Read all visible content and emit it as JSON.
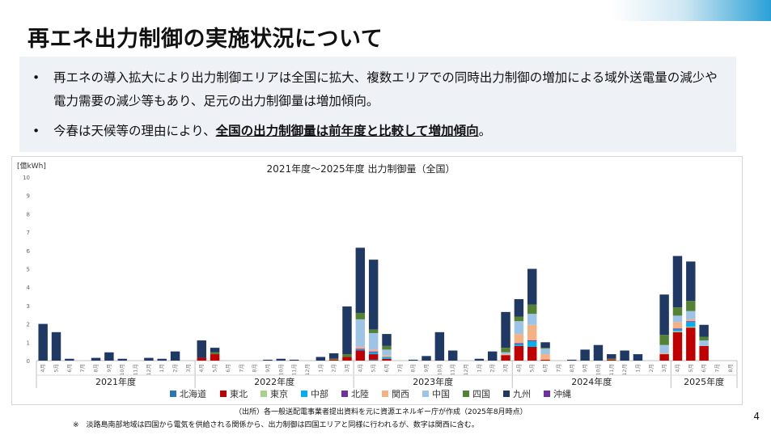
{
  "page": {
    "title": "再エネ出力制御の実施状況について",
    "bullets": [
      {
        "text": "再エネの導入拡大により出力制御エリアは全国に拡大、複数エリアでの同時出力制御の増加による域外送電量の減少や電力需要の減少等もあり、足元の出力制御量は増加傾向。",
        "emph": ""
      },
      {
        "text": "今春は天候等の理由により、",
        "emph": "全国の出力制御量は前年度と比較して増加傾向",
        "after": "。"
      }
    ],
    "bullet_mark": "•",
    "source": "（出所）各一般送配電事業者提出資料を元に資源エネルギー庁が作成（2025年8月時点）",
    "note": "※　淡路島南部地域は四国から電気を供給される関係から、出力制御は四国エリアと同様に行われるが、数字は関西に含む。",
    "page_number": "4"
  },
  "chart_data": {
    "type": "bar",
    "stacked": true,
    "title": "2021年度〜2025年度  出力制御量（全国）",
    "ylabel": "[億kWh]",
    "ylim": [
      0,
      10
    ],
    "yticks": [
      0,
      1,
      2,
      3,
      4,
      5,
      6,
      7,
      8,
      9,
      10
    ],
    "grid": false,
    "legend_position": "bottom",
    "categories": [
      "4月",
      "5月",
      "6月",
      "7月",
      "8月",
      "9月",
      "10月",
      "11月",
      "12月",
      "1月",
      "2月",
      "3月",
      "4月",
      "5月",
      "6月",
      "7月",
      "8月",
      "9月",
      "10月",
      "11月",
      "12月",
      "1月",
      "2月",
      "3月",
      "4月",
      "5月",
      "6月",
      "7月",
      "8月",
      "9月",
      "10月",
      "11月",
      "12月",
      "1月",
      "2月",
      "3月",
      "4月",
      "5月",
      "6月",
      "7月",
      "8月",
      "9月",
      "10月",
      "11月",
      "12月",
      "1月",
      "2月",
      "3月",
      "4月",
      "5月",
      "6月",
      "7月",
      "8月"
    ],
    "fiscal_years": [
      {
        "label": "2021年度",
        "start": 0,
        "count": 12
      },
      {
        "label": "2022年度",
        "start": 12,
        "count": 12
      },
      {
        "label": "2023年度",
        "start": 24,
        "count": 12
      },
      {
        "label": "2024年度",
        "start": 36,
        "count": 12
      },
      {
        "label": "2025年度",
        "start": 48,
        "count": 5
      }
    ],
    "series": [
      {
        "name": "北海道",
        "color": "#2e75b6",
        "values": [
          0,
          0,
          0,
          0,
          0,
          0,
          0,
          0,
          0,
          0,
          0,
          0,
          0,
          0,
          0,
          0,
          0,
          0,
          0,
          0,
          0,
          0,
          0,
          0,
          0,
          0.05,
          0,
          0,
          0,
          0,
          0,
          0,
          0,
          0,
          0,
          0,
          0,
          0,
          0,
          0,
          0,
          0,
          0,
          0,
          0,
          0,
          0,
          0,
          0,
          0,
          0,
          0,
          0
        ]
      },
      {
        "name": "東北",
        "color": "#c00000",
        "values": [
          0,
          0,
          0,
          0,
          0,
          0,
          0,
          0,
          0,
          0,
          0,
          0,
          0.15,
          0.35,
          0,
          0,
          0,
          0,
          0,
          0,
          0,
          0,
          0.05,
          0.2,
          0.55,
          0.3,
          0.1,
          0,
          0,
          0,
          0,
          0,
          0,
          0,
          0,
          0.3,
          0.8,
          0.75,
          0.05,
          0,
          0,
          0,
          0,
          0.05,
          0,
          0,
          0,
          0.35,
          1.55,
          1.8,
          0.8,
          0,
          0
        ]
      },
      {
        "name": "東京",
        "color": "#a9d18e",
        "values": [
          0,
          0,
          0,
          0,
          0,
          0,
          0,
          0,
          0,
          0,
          0,
          0,
          0,
          0,
          0,
          0,
          0,
          0,
          0,
          0,
          0,
          0,
          0,
          0,
          0,
          0,
          0,
          0,
          0,
          0,
          0,
          0,
          0,
          0,
          0,
          0,
          0,
          0,
          0,
          0,
          0,
          0,
          0,
          0,
          0,
          0,
          0,
          0,
          0.05,
          0.05,
          0,
          0,
          0
        ]
      },
      {
        "name": "中部",
        "color": "#00b0f0",
        "values": [
          0,
          0,
          0,
          0,
          0,
          0,
          0,
          0,
          0,
          0,
          0,
          0,
          0,
          0,
          0,
          0,
          0,
          0,
          0,
          0,
          0,
          0,
          0,
          0,
          0.05,
          0.1,
          0.1,
          0,
          0,
          0,
          0,
          0,
          0,
          0,
          0,
          0,
          0.1,
          0.3,
          0,
          0,
          0,
          0,
          0,
          0,
          0,
          0,
          0,
          0,
          0.1,
          0.25,
          0,
          0,
          0
        ]
      },
      {
        "name": "北陸",
        "color": "#7030a0",
        "values": [
          0,
          0,
          0,
          0,
          0,
          0,
          0,
          0,
          0,
          0,
          0,
          0,
          0,
          0,
          0,
          0,
          0,
          0,
          0,
          0,
          0,
          0,
          0,
          0,
          0.05,
          0.05,
          0,
          0,
          0,
          0,
          0,
          0,
          0,
          0,
          0,
          0,
          0.05,
          0.05,
          0,
          0,
          0,
          0,
          0,
          0,
          0,
          0,
          0,
          0,
          0.05,
          0.05,
          0,
          0,
          0
        ]
      },
      {
        "name": "関西",
        "color": "#f4b183",
        "values": [
          0,
          0,
          0,
          0,
          0,
          0,
          0,
          0,
          0,
          0,
          0,
          0,
          0,
          0,
          0,
          0,
          0,
          0,
          0,
          0,
          0,
          0,
          0,
          0,
          0.1,
          0.1,
          0.1,
          0,
          0,
          0,
          0,
          0,
          0,
          0,
          0,
          0.05,
          0.5,
          0.85,
          0.3,
          0,
          0,
          0,
          0,
          0,
          0,
          0,
          0,
          0.05,
          0.35,
          0.1,
          0,
          0,
          0
        ]
      },
      {
        "name": "中国",
        "color": "#9dc3e6",
        "values": [
          0,
          0,
          0,
          0,
          0,
          0,
          0,
          0,
          0,
          0,
          0,
          0,
          0,
          0,
          0,
          0,
          0,
          0,
          0,
          0,
          0,
          0,
          0,
          0,
          1.5,
          0.9,
          0.3,
          0,
          0,
          0,
          0,
          0,
          0,
          0,
          0,
          0.1,
          0.7,
          0.6,
          0.3,
          0,
          0,
          0,
          0,
          0,
          0,
          0,
          0,
          0.45,
          0.35,
          0.45,
          0.3,
          0,
          0
        ]
      },
      {
        "name": "四国",
        "color": "#548235",
        "values": [
          0,
          0,
          0,
          0,
          0,
          0,
          0,
          0,
          0,
          0,
          0,
          0,
          0,
          0.1,
          0,
          0,
          0,
          0,
          0,
          0,
          0,
          0,
          0.05,
          0.15,
          0.35,
          0.2,
          0.2,
          0,
          0,
          0,
          0,
          0,
          0,
          0,
          0,
          0.25,
          0.25,
          0.5,
          0.05,
          0,
          0,
          0,
          0,
          0.05,
          0,
          0,
          0,
          0.55,
          0.45,
          0.55,
          0.2,
          0,
          0
        ]
      },
      {
        "name": "九州",
        "color": "#1f3864",
        "values": [
          2.0,
          1.55,
          0.1,
          0,
          0.15,
          0.45,
          0.1,
          0,
          0.15,
          0.1,
          0.5,
          0,
          0.95,
          0.25,
          0,
          0,
          0,
          0.05,
          0.1,
          0.05,
          0,
          0.2,
          0.3,
          2.6,
          3.55,
          3.8,
          0.65,
          0,
          0.05,
          0.25,
          1.55,
          0.55,
          0,
          0.1,
          0.5,
          1.95,
          0.95,
          1.95,
          0.3,
          0,
          0.05,
          0.6,
          0.85,
          0.25,
          0.55,
          0.35,
          0,
          2.2,
          2.8,
          2.15,
          0.65,
          0,
          0
        ]
      },
      {
        "name": "沖縄",
        "color": "#7030a0",
        "values": [
          0,
          0,
          0,
          0,
          0,
          0,
          0,
          0,
          0,
          0,
          0,
          0,
          0,
          0,
          0,
          0,
          0,
          0,
          0,
          0,
          0,
          0,
          0,
          0,
          0,
          0,
          0,
          0,
          0,
          0,
          0,
          0,
          0,
          0,
          0,
          0,
          0,
          0,
          0,
          0,
          0,
          0,
          0,
          0,
          0,
          0,
          0,
          0,
          0,
          0,
          0,
          0,
          0
        ]
      }
    ]
  }
}
